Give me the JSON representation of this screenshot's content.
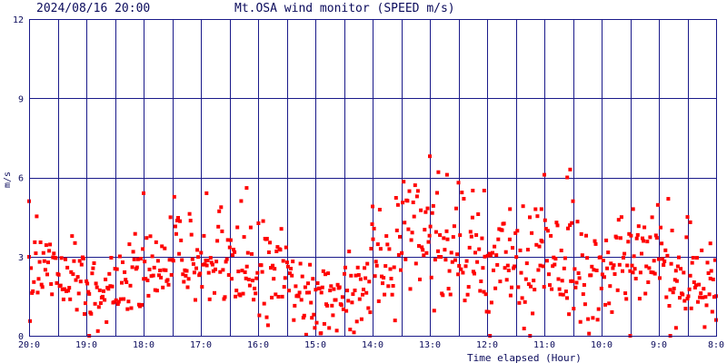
{
  "header": {
    "timestamp": "2024/08/16 20:00",
    "title": "Mt.OSA wind monitor (SPEED m/s)"
  },
  "colors": {
    "grid": "#1a1a8a",
    "text": "#0b0b5c",
    "points": "#ff0000",
    "background": "#ffffff"
  },
  "chart_data": {
    "type": "scatter",
    "title": "Mt.OSA wind monitor (SPEED m/s)",
    "xlabel": "Time elapsed (Hour)",
    "ylabel": "m/s",
    "x_direction": "reversed (20:0 at left, 8:0 at right)",
    "x_tick_labels": [
      "20:0",
      "19:0",
      "18:0",
      "17:0",
      "16:0",
      "15:0",
      "14:0",
      "13:0",
      "12:0",
      "11:0",
      "10:0",
      "9:0",
      "8:0"
    ],
    "y_ticks": [
      0,
      3,
      6,
      9,
      12
    ],
    "ylim": [
      0,
      12
    ],
    "grid": true,
    "x_unit": "hours before 2024/08/16 20:00",
    "xlim": [
      0,
      12
    ],
    "hourly_profile": {
      "x": [
        0,
        0.5,
        1,
        1.5,
        2,
        2.5,
        3,
        3.5,
        4,
        4.5,
        5,
        5.5,
        6,
        6.5,
        7,
        7.5,
        8,
        8.5,
        9,
        9.5,
        10,
        10.5,
        11,
        11.5,
        12
      ],
      "center": [
        2.8,
        2.3,
        2.0,
        1.7,
        2.3,
        3.0,
        3.0,
        3.2,
        2.5,
        2.3,
        1.3,
        1.4,
        2.3,
        3.3,
        3.7,
        3.0,
        2.5,
        2.7,
        3.3,
        2.2,
        2.3,
        2.8,
        3.0,
        2.1,
        1.8
      ],
      "spread": [
        1.2,
        1.0,
        0.9,
        0.9,
        1.2,
        1.5,
        1.4,
        1.5,
        1.4,
        1.3,
        1.0,
        1.0,
        1.3,
        1.7,
        1.6,
        1.6,
        1.5,
        1.4,
        1.8,
        1.5,
        1.4,
        1.5,
        1.5,
        1.3,
        1.3
      ]
    },
    "notable_points": [
      {
        "x": 0.0,
        "y": 5.1
      },
      {
        "x": 1.05,
        "y": 0.0
      },
      {
        "x": 2.0,
        "y": 5.4
      },
      {
        "x": 3.1,
        "y": 5.4
      },
      {
        "x": 3.8,
        "y": 5.6
      },
      {
        "x": 4.15,
        "y": 0.7
      },
      {
        "x": 5.1,
        "y": 0.1
      },
      {
        "x": 6.0,
        "y": 4.9
      },
      {
        "x": 7.0,
        "y": 6.8
      },
      {
        "x": 7.15,
        "y": 6.2
      },
      {
        "x": 7.3,
        "y": 6.1
      },
      {
        "x": 7.5,
        "y": 5.8
      },
      {
        "x": 7.75,
        "y": 5.5
      },
      {
        "x": 7.95,
        "y": 5.5
      },
      {
        "x": 8.05,
        "y": 0.0
      },
      {
        "x": 8.4,
        "y": 4.8
      },
      {
        "x": 8.75,
        "y": 0.0
      },
      {
        "x": 8.95,
        "y": 4.8
      },
      {
        "x": 9.0,
        "y": 6.1
      },
      {
        "x": 9.4,
        "y": 6.0
      },
      {
        "x": 9.45,
        "y": 6.3
      },
      {
        "x": 9.5,
        "y": 5.1
      },
      {
        "x": 10.5,
        "y": 0.0
      },
      {
        "x": 10.55,
        "y": 4.8
      },
      {
        "x": 11.2,
        "y": 0.0
      },
      {
        "x": 11.3,
        "y": 0.3
      },
      {
        "x": 11.5,
        "y": 4.5
      },
      {
        "x": 11.55,
        "y": 4.3
      },
      {
        "x": 11.9,
        "y": 3.5
      },
      {
        "x": 12.0,
        "y": 0.6
      }
    ]
  },
  "axis": {
    "x_caption": "Time elapsed (Hour)",
    "y_caption": "m/s"
  }
}
